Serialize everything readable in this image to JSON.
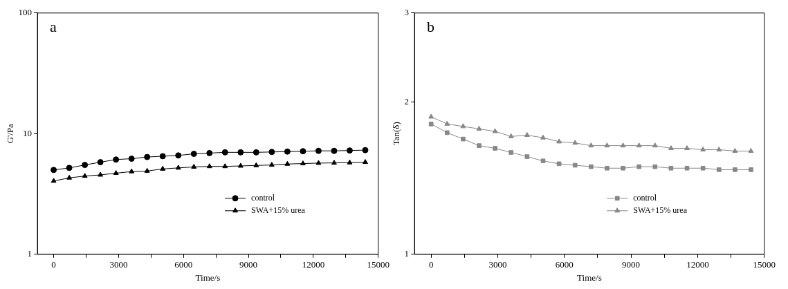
{
  "chart_data": [
    {
      "type": "line",
      "annotations": [
        "a"
      ],
      "xlabel": "Time/s",
      "ylabel": "G'/Pa",
      "log": "y",
      "legend": "bottom right",
      "grid": false,
      "line_style": "solid",
      "x": [
        0,
        720,
        1440,
        2160,
        2880,
        3600,
        4320,
        5040,
        5760,
        6480,
        7200,
        7920,
        8640,
        9360,
        10080,
        10800,
        11520,
        12240,
        12960,
        13680,
        14400
      ],
      "xlim": [
        -750,
        15000
      ],
      "xticks": [
        0,
        {
          "value": 1500,
          "label": null
        },
        3000,
        {
          "value": 4500,
          "label": null
        },
        6000,
        {
          "value": 7500,
          "label": null
        },
        9000,
        {
          "value": 10500,
          "label": null
        },
        12000,
        {
          "value": 13500,
          "label": null
        },
        15000
      ],
      "ylim": [
        1,
        100
      ],
      "yticks": [
        1,
        10,
        100
      ],
      "series": [
        {
          "name": "control",
          "color": "#000000",
          "marker": "circle",
          "values": [
            5.0,
            5.2,
            5.5,
            5.8,
            6.1,
            6.2,
            6.4,
            6.5,
            6.6,
            6.8,
            6.9,
            7.0,
            7.0,
            7.0,
            7.05,
            7.1,
            7.15,
            7.2,
            7.2,
            7.25,
            7.3
          ]
        },
        {
          "name": "SWA+15% urea",
          "color": "#000000",
          "marker": "triangle",
          "values": [
            4.05,
            4.3,
            4.45,
            4.55,
            4.7,
            4.85,
            4.9,
            5.1,
            5.2,
            5.3,
            5.35,
            5.35,
            5.4,
            5.45,
            5.5,
            5.6,
            5.65,
            5.7,
            5.72,
            5.75,
            5.8
          ]
        }
      ]
    },
    {
      "type": "line",
      "annotations": [
        "b"
      ],
      "xlabel": "Time/s",
      "ylabel": "Tan(δ)",
      "log": "y",
      "legend": "bottom right",
      "grid": false,
      "line_style": "solid",
      "x": [
        0,
        720,
        1440,
        2160,
        2880,
        3600,
        4320,
        5040,
        5760,
        6480,
        7200,
        7920,
        8640,
        9360,
        10080,
        10800,
        11520,
        12240,
        12960,
        13680,
        14400
      ],
      "xlim": [
        -750,
        15000
      ],
      "xticks": [
        0,
        {
          "value": 1500,
          "label": null
        },
        3000,
        {
          "value": 4500,
          "label": null
        },
        6000,
        {
          "value": 7500,
          "label": null
        },
        9000,
        {
          "value": 10500,
          "label": null
        },
        12000,
        {
          "value": 13500,
          "label": null
        },
        15000
      ],
      "ylim": [
        1,
        3
      ],
      "yticks": [
        1,
        2,
        3
      ],
      "series": [
        {
          "name": "control",
          "color": "#888888",
          "marker": "square",
          "values": [
            1.81,
            1.74,
            1.69,
            1.64,
            1.62,
            1.59,
            1.56,
            1.53,
            1.51,
            1.5,
            1.49,
            1.48,
            1.48,
            1.49,
            1.49,
            1.48,
            1.48,
            1.48,
            1.47,
            1.47,
            1.47
          ]
        },
        {
          "name": "SWA+15% urea",
          "color": "#888888",
          "marker": "triangle",
          "values": [
            1.87,
            1.81,
            1.79,
            1.77,
            1.75,
            1.71,
            1.72,
            1.7,
            1.67,
            1.66,
            1.64,
            1.64,
            1.64,
            1.64,
            1.64,
            1.62,
            1.62,
            1.61,
            1.61,
            1.6,
            1.6
          ]
        }
      ]
    }
  ]
}
